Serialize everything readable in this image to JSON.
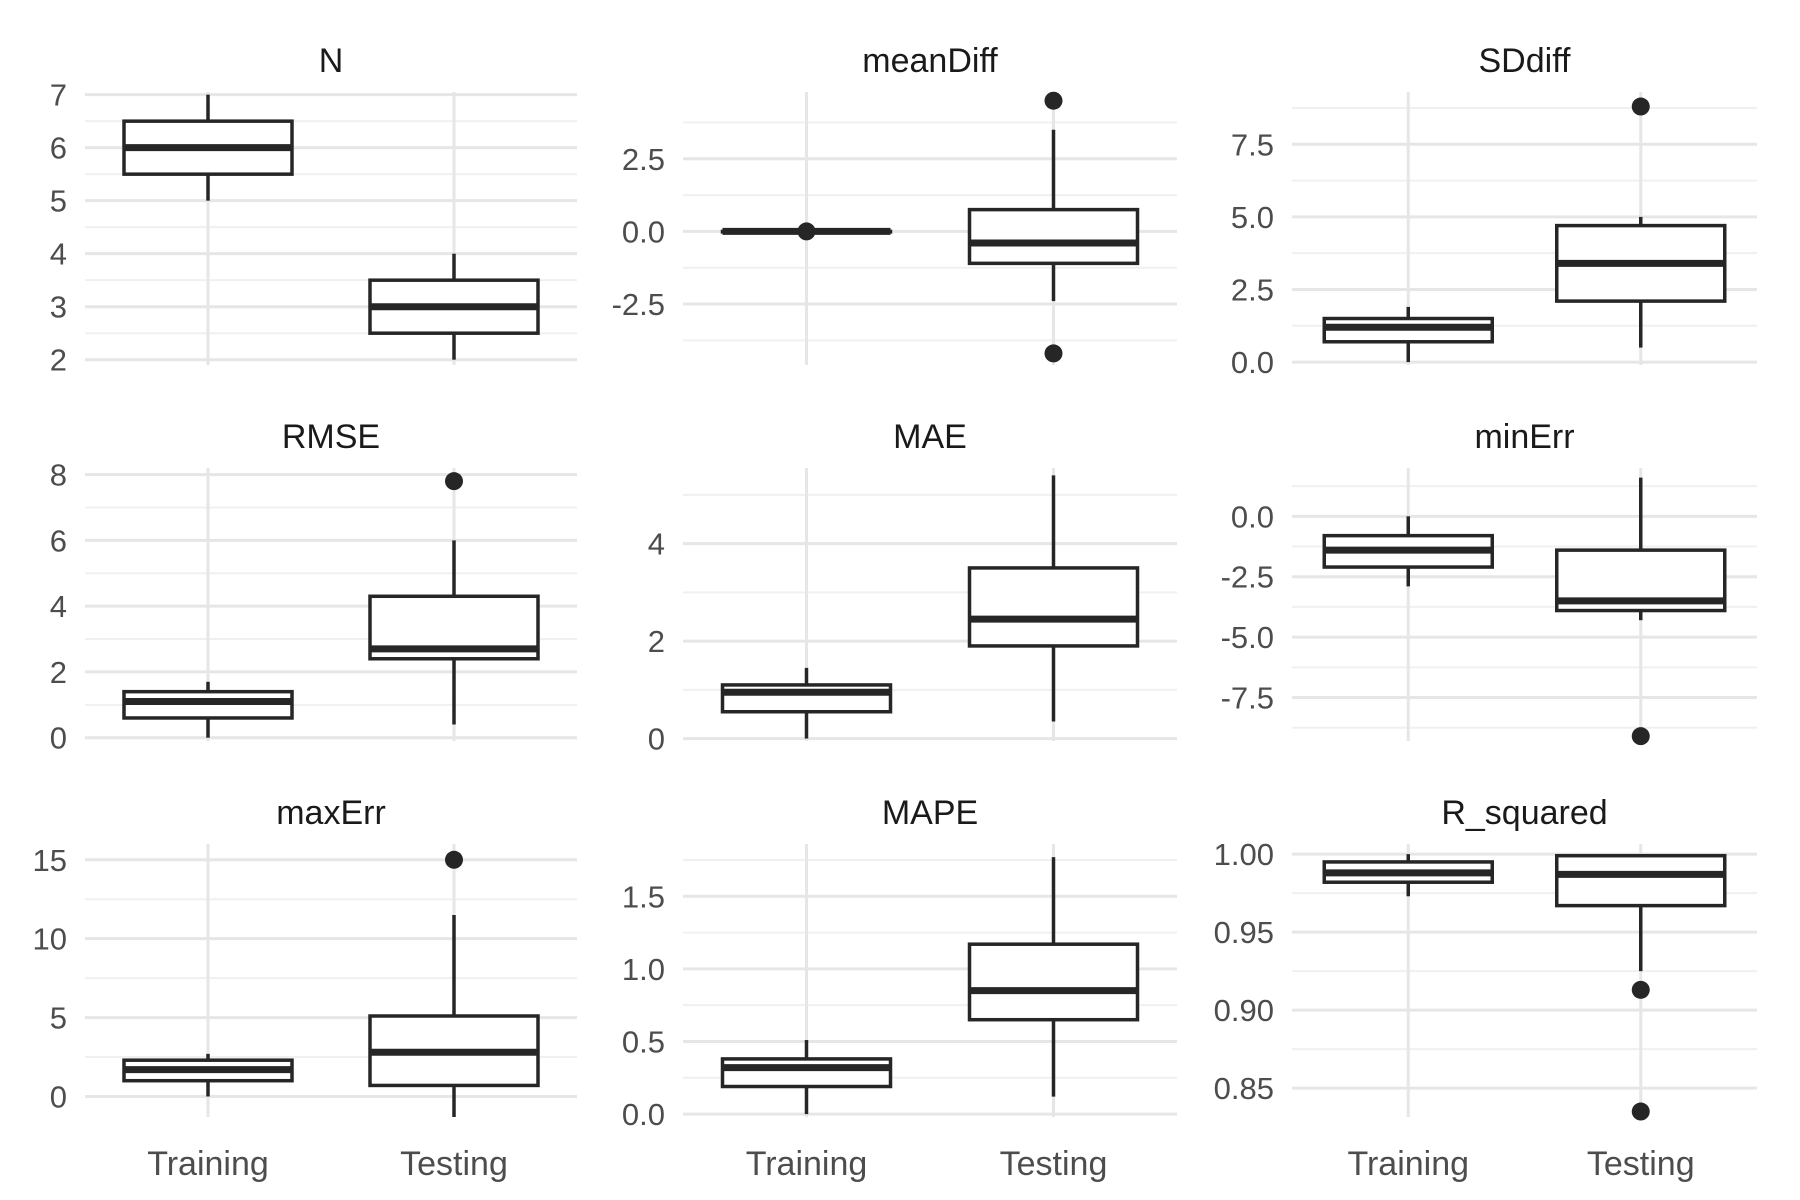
{
  "colors": {
    "box": "#262626",
    "grid_major": "#e6e6e6",
    "grid_minor": "#f0f0f0",
    "outlier": "#262626",
    "background": "#ffffff"
  },
  "chart_data": {
    "type": "boxplot",
    "layout": "3x3 facets",
    "categories": [
      "Training",
      "Testing"
    ],
    "panels": [
      {
        "title": "N",
        "ylim": [
          1.9,
          7.05
        ],
        "yticks": [
          2,
          3,
          4,
          5,
          6,
          7
        ],
        "ytick_labels": [
          "2",
          "3",
          "4",
          "5",
          "6",
          "7"
        ],
        "boxes": [
          {
            "category": "Training",
            "q1": 5.5,
            "median": 6,
            "q3": 6.5,
            "whisker_low": 5,
            "whisker_high": 7,
            "outliers": []
          },
          {
            "category": "Testing",
            "q1": 2.5,
            "median": 3,
            "q3": 3.5,
            "whisker_low": 2,
            "whisker_high": 4,
            "outliers": []
          }
        ]
      },
      {
        "title": "meanDiff",
        "ylim": [
          -4.6,
          4.8
        ],
        "yticks": [
          -2.5,
          0,
          2.5
        ],
        "ytick_labels": [
          "-2.5",
          "0.0",
          "2.5"
        ],
        "boxes": [
          {
            "category": "Training",
            "q1": 0,
            "median": 0,
            "q3": 0,
            "whisker_low": 0,
            "whisker_high": 0,
            "outliers": [
              0
            ]
          },
          {
            "category": "Testing",
            "q1": -1.1,
            "median": -0.4,
            "q3": 0.75,
            "whisker_low": -2.4,
            "whisker_high": 3.5,
            "outliers": [
              4.5,
              -4.2
            ]
          }
        ]
      },
      {
        "title": "SDdiff",
        "ylim": [
          -0.1,
          9.3
        ],
        "yticks": [
          0,
          2.5,
          5,
          7.5
        ],
        "ytick_labels": [
          "0.0",
          "2.5",
          "5.0",
          "7.5"
        ],
        "boxes": [
          {
            "category": "Training",
            "q1": 0.7,
            "median": 1.2,
            "q3": 1.5,
            "whisker_low": 0,
            "whisker_high": 1.9,
            "outliers": []
          },
          {
            "category": "Testing",
            "q1": 2.1,
            "median": 3.4,
            "q3": 4.7,
            "whisker_low": 0.5,
            "whisker_high": 5,
            "outliers": [
              8.8
            ]
          }
        ]
      },
      {
        "title": "RMSE",
        "ylim": [
          -0.1,
          8.2
        ],
        "yticks": [
          0,
          2,
          4,
          6,
          8
        ],
        "ytick_labels": [
          "0",
          "2",
          "4",
          "6",
          "8"
        ],
        "boxes": [
          {
            "category": "Training",
            "q1": 0.6,
            "median": 1.1,
            "q3": 1.4,
            "whisker_low": 0,
            "whisker_high": 1.7,
            "outliers": []
          },
          {
            "category": "Testing",
            "q1": 2.4,
            "median": 2.7,
            "q3": 4.3,
            "whisker_low": 0.4,
            "whisker_high": 6,
            "outliers": [
              7.8
            ]
          }
        ]
      },
      {
        "title": "MAE",
        "ylim": [
          -0.05,
          5.55
        ],
        "yticks": [
          0,
          2,
          4
        ],
        "ytick_labels": [
          "0",
          "2",
          "4"
        ],
        "boxes": [
          {
            "category": "Training",
            "q1": 0.55,
            "median": 0.95,
            "q3": 1.1,
            "whisker_low": 0,
            "whisker_high": 1.45,
            "outliers": []
          },
          {
            "category": "Testing",
            "q1": 1.9,
            "median": 2.45,
            "q3": 3.5,
            "whisker_low": 0.35,
            "whisker_high": 5.4,
            "outliers": []
          }
        ]
      },
      {
        "title": "minErr",
        "ylim": [
          -9.3,
          2.0
        ],
        "yticks": [
          -7.5,
          -5,
          -2.5,
          0
        ],
        "ytick_labels": [
          "-7.5",
          "-5.0",
          "-2.5",
          "0.0"
        ],
        "boxes": [
          {
            "category": "Training",
            "q1": -2.1,
            "median": -1.4,
            "q3": -0.8,
            "whisker_low": -2.9,
            "whisker_high": 0,
            "outliers": []
          },
          {
            "category": "Testing",
            "q1": -3.9,
            "median": -3.5,
            "q3": -1.4,
            "whisker_low": -4.3,
            "whisker_high": 1.6,
            "outliers": [
              -9.1
            ]
          }
        ]
      },
      {
        "title": "maxErr",
        "ylim": [
          -1.3,
          16.0
        ],
        "yticks": [
          0,
          5,
          10,
          15
        ],
        "ytick_labels": [
          "0",
          "5",
          "10",
          "15"
        ],
        "boxes": [
          {
            "category": "Training",
            "q1": 1,
            "median": 1.7,
            "q3": 2.3,
            "whisker_low": 0,
            "whisker_high": 2.7,
            "outliers": []
          },
          {
            "category": "Testing",
            "q1": 0.7,
            "median": 2.8,
            "q3": 5.1,
            "whisker_low": -1.3,
            "whisker_high": 11.5,
            "outliers": [
              15
            ]
          }
        ]
      },
      {
        "title": "MAPE",
        "ylim": [
          -0.02,
          1.86
        ],
        "yticks": [
          0,
          0.5,
          1.0,
          1.5
        ],
        "ytick_labels": [
          "0.0",
          "0.5",
          "1.0",
          "1.5"
        ],
        "boxes": [
          {
            "category": "Training",
            "q1": 0.19,
            "median": 0.32,
            "q3": 0.38,
            "whisker_low": 0,
            "whisker_high": 0.51,
            "outliers": []
          },
          {
            "category": "Testing",
            "q1": 0.65,
            "median": 0.85,
            "q3": 1.17,
            "whisker_low": 0.12,
            "whisker_high": 1.77,
            "outliers": []
          }
        ]
      },
      {
        "title": "R_squared",
        "ylim": [
          0.8315,
          1.0065
        ],
        "yticks": [
          0.85,
          0.9,
          0.95,
          1.0
        ],
        "ytick_labels": [
          "0.85",
          "0.90",
          "0.95",
          "1.00"
        ],
        "boxes": [
          {
            "category": "Training",
            "q1": 0.982,
            "median": 0.988,
            "q3": 0.995,
            "whisker_low": 0.973,
            "whisker_high": 1.0,
            "outliers": []
          },
          {
            "category": "Testing",
            "q1": 0.967,
            "median": 0.987,
            "q3": 0.999,
            "whisker_low": 0.925,
            "whisker_high": 1.0,
            "outliers": [
              0.913,
              0.835
            ]
          }
        ]
      }
    ]
  }
}
